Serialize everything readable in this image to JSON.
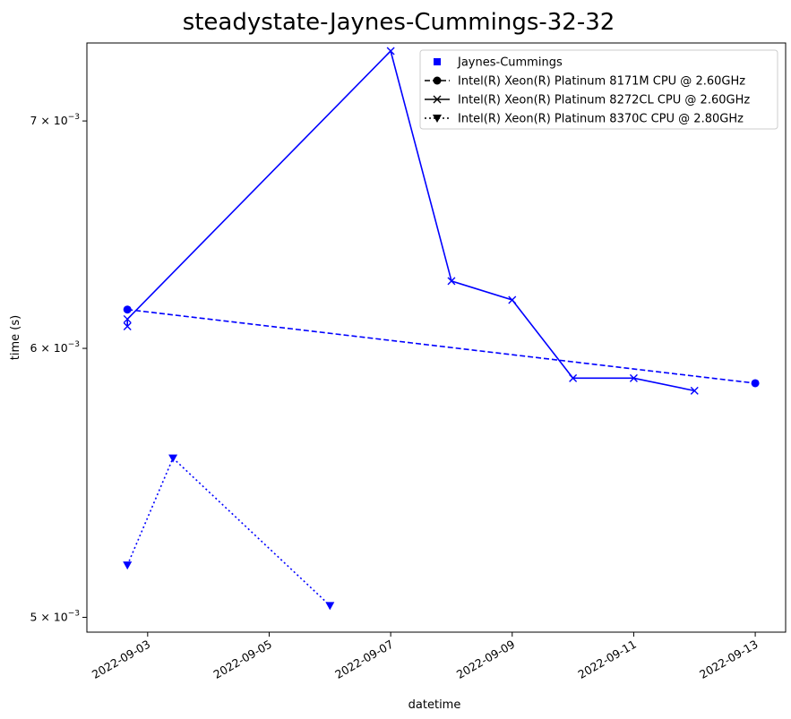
{
  "chart_data": {
    "type": "line",
    "title": "steadystate-Jaynes-Cummings-32-32",
    "xlabel": "datetime",
    "ylabel": "time (s)",
    "y_scale": "log",
    "xlim": [
      "2022-09-02T00:00",
      "2022-09-13T12:00"
    ],
    "ylim": [
      0.00495,
      0.00738
    ],
    "x_ticks": [
      "2022-09-03",
      "2022-09-05",
      "2022-09-07",
      "2022-09-09",
      "2022-09-11",
      "2022-09-13"
    ],
    "y_ticks": [
      {
        "value": 0.005,
        "label": "5 × 10",
        "exp": "−3"
      },
      {
        "value": 0.006,
        "label": "6 × 10",
        "exp": "−3"
      },
      {
        "value": 0.007,
        "label": "7 × 10",
        "exp": "−3"
      }
    ],
    "legend": {
      "placement": "upper-right",
      "title_entry": "Jaynes-Cummings"
    },
    "color": "#0000ff",
    "series": [
      {
        "name": "Intel(R) Xeon(R) Platinum 8171M CPU @ 2.60GHz",
        "linestyle": "dashed",
        "marker": "circle",
        "points": [
          {
            "x": "2022-09-02T16:00",
            "y": 0.00616
          },
          {
            "x": "2022-09-13T00:00",
            "y": 0.00586
          }
        ]
      },
      {
        "name": "Intel(R) Xeon(R) Platinum 8272CL CPU @ 2.60GHz",
        "linestyle": "solid",
        "marker": "x",
        "points": [
          {
            "x": "2022-09-02T16:00",
            "y": 0.00609
          },
          {
            "x": "2022-09-02T16:00",
            "y": 0.00612
          },
          {
            "x": "2022-09-07T00:00",
            "y": 0.00734
          },
          {
            "x": "2022-09-08T00:00",
            "y": 0.00628
          },
          {
            "x": "2022-09-09T00:00",
            "y": 0.0062
          },
          {
            "x": "2022-09-10T00:00",
            "y": 0.00588
          },
          {
            "x": "2022-09-11T00:00",
            "y": 0.00588
          },
          {
            "x": "2022-09-12T00:00",
            "y": 0.00583
          }
        ]
      },
      {
        "name": "Intel(R) Xeon(R) Platinum 8370C CPU @ 2.80GHz",
        "linestyle": "dotted",
        "marker": "triangle-down",
        "points": [
          {
            "x": "2022-09-02T16:00",
            "y": 0.00518
          },
          {
            "x": "2022-09-03T10:00",
            "y": 0.00557
          },
          {
            "x": "2022-09-06T00:00",
            "y": 0.00504
          }
        ]
      }
    ]
  }
}
